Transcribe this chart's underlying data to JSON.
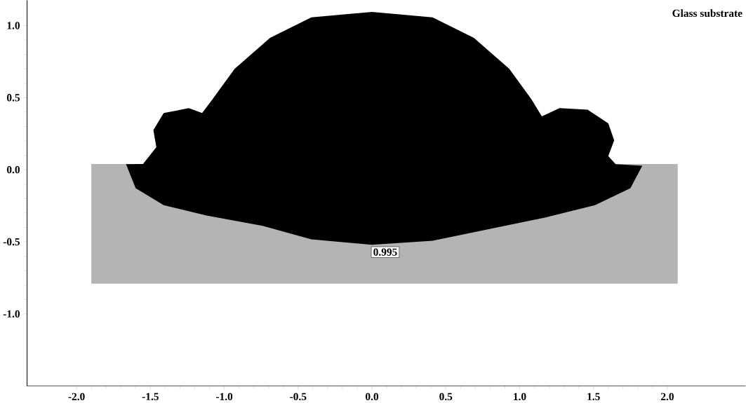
{
  "chart_data": {
    "type": "area",
    "series": [
      {
        "color": "#b4b4b4",
        "x": [
          -1.9,
          2.07,
          2.07,
          -1.9
        ],
        "values": [
          0.04,
          0.04,
          -0.79,
          -0.79
        ]
      },
      {
        "color": "#000000",
        "x": [
          -1.665,
          -1.6,
          -1.41,
          -1.12,
          -0.74,
          -0.41,
          0,
          0.41,
          0.79,
          1.17,
          1.51,
          1.75,
          1.83,
          1.65,
          1.6,
          1.64,
          1.6,
          1.46,
          1.27,
          1.15,
          1.08,
          0.93,
          0.69,
          0.41,
          0,
          -0.41,
          -0.69,
          -0.93,
          -1.08,
          -1.15,
          -1.24,
          -1.41,
          -1.48,
          -1.46,
          -1.55
        ],
        "values": [
          0.038,
          -0.128,
          -0.246,
          -0.318,
          -0.389,
          -0.483,
          -0.521,
          -0.493,
          -0.412,
          -0.332,
          -0.246,
          -0.128,
          0.028,
          0.038,
          0.095,
          0.204,
          0.322,
          0.417,
          0.427,
          0.37,
          0.488,
          0.7,
          0.915,
          1.057,
          1.095,
          1.057,
          0.915,
          0.7,
          0.488,
          0.393,
          0.427,
          0.393,
          0.275,
          0.156,
          0.04
        ]
      }
    ],
    "annotations": [
      "Glass substrate",
      {
        "text": "0.995",
        "x": 0.09,
        "y": -0.52
      }
    ],
    "xlim": [
      -2.335,
      2.53
    ],
    "ylim": [
      -1.5,
      1.175
    ],
    "xticks": [
      {
        "value": -2,
        "label": "-2.0"
      },
      {
        "value": -1.5,
        "label": "-1.5"
      },
      {
        "value": -1,
        "label": "-1.0"
      },
      {
        "value": -0.5,
        "label": "-0.5"
      },
      {
        "value": 0,
        "label": "0.0"
      },
      {
        "value": 0.5,
        "label": "0.5"
      },
      {
        "value": 1,
        "label": "1.0"
      },
      {
        "value": 1.5,
        "label": "1.5"
      },
      {
        "value": 2,
        "label": "2.0"
      }
    ],
    "yticks": [
      {
        "value": -1,
        "label": "-1.0"
      },
      {
        "value": -0.5,
        "label": "-0.5"
      },
      {
        "value": 0,
        "label": "0.0"
      },
      {
        "value": 0.5,
        "label": "0.5"
      },
      {
        "value": 1,
        "label": "1.0"
      }
    ]
  }
}
